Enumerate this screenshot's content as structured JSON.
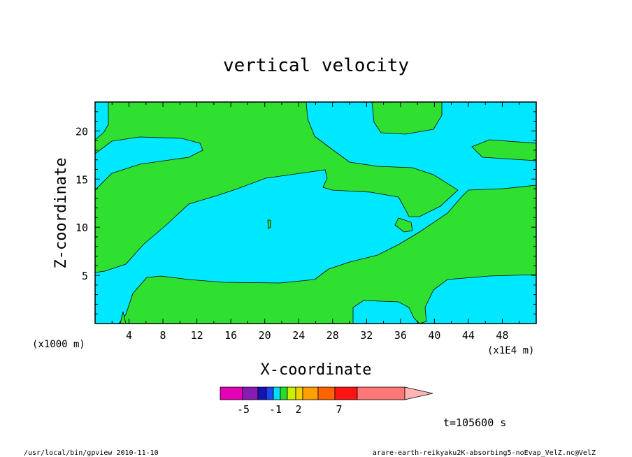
{
  "chart_data": {
    "type": "heatmap",
    "title": "vertical velocity",
    "xlabel": "X-coordinate",
    "ylabel": "Z-coordinate",
    "x_unit_left": "(x1000 m)",
    "x_unit_right": "(x1E4 m)",
    "xlim": [
      0,
      52
    ],
    "ylim": [
      0,
      23
    ],
    "x_ticks": [
      "4",
      "8",
      "12",
      "16",
      "20",
      "24",
      "28",
      "32",
      "36",
      "40",
      "44",
      "48"
    ],
    "y_ticks": [
      "5",
      "10",
      "15",
      "20"
    ],
    "colorbar": {
      "colors": [
        "#e600b4",
        "#8a1ab4",
        "#1414b4",
        "#1e46f0",
        "#00dcf0",
        "#28dc28",
        "#c8f000",
        "#f0d200",
        "#ffa000",
        "#ff6400",
        "#ff1414",
        "#ff7878",
        "#ffb4b4"
      ],
      "labels": [
        "-5",
        "-1",
        "2",
        "7"
      ]
    },
    "time_label": "t=105600 s"
  },
  "footer": {
    "left": "/usr/local/bin/gpview  2010-11-10",
    "right": "arare-earth-reikyaku2K-absorbing5-noEvap_VelZ.nc@VelZ"
  }
}
